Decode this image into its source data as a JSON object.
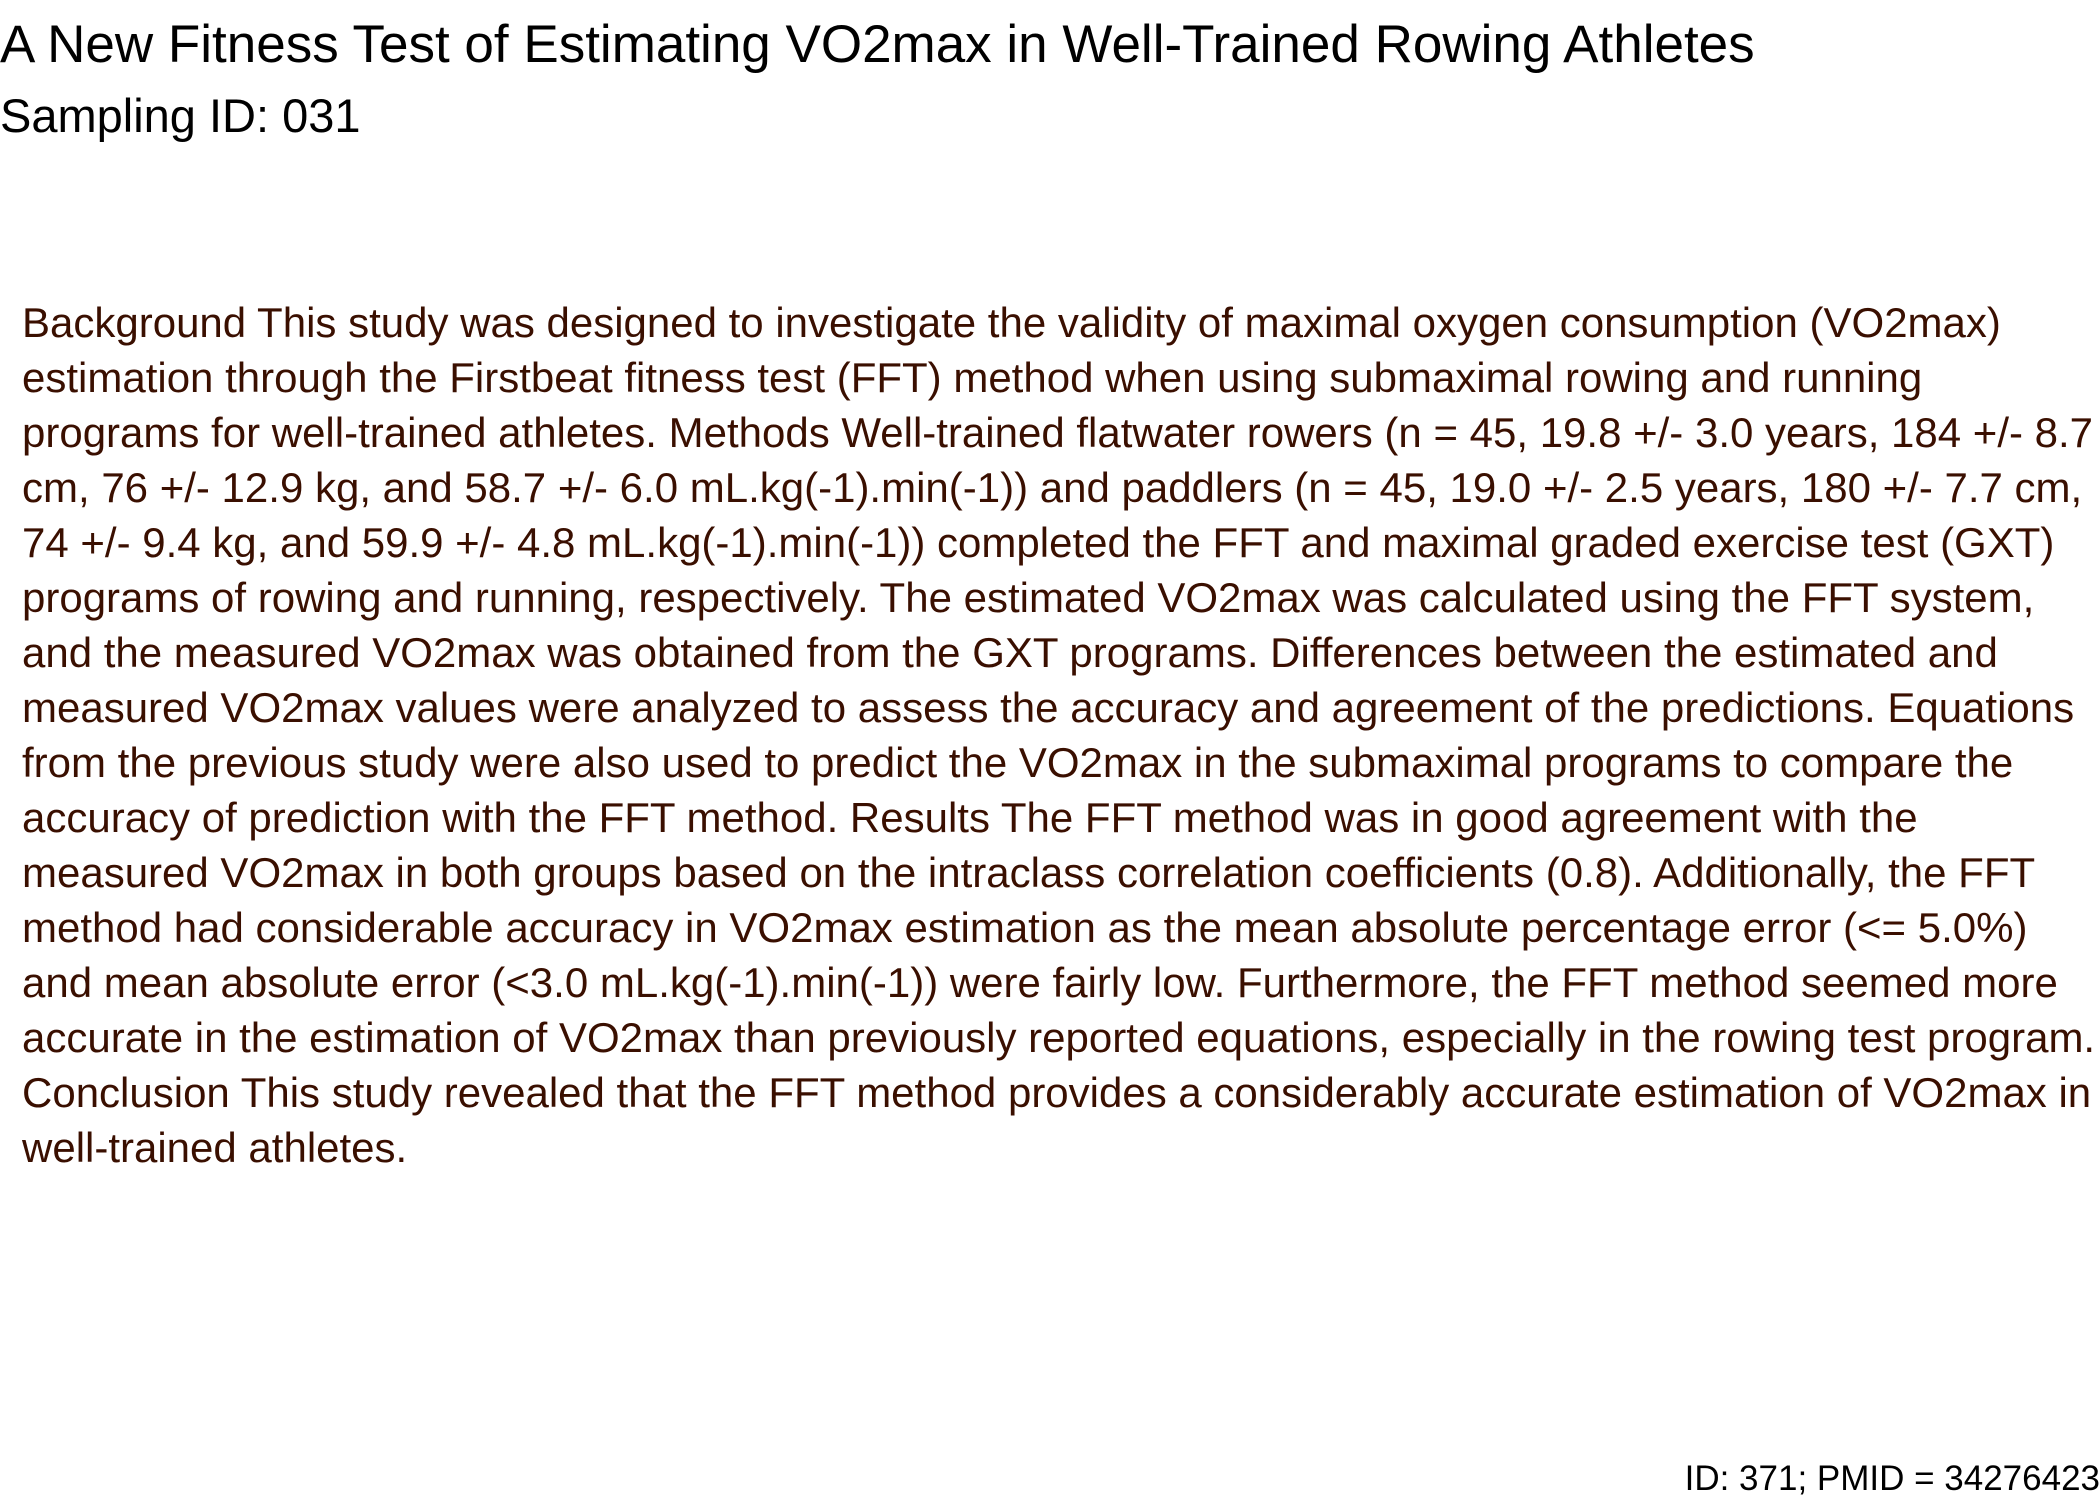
{
  "document": {
    "title": "A New Fitness Test of Estimating VO2max in Well-Trained Rowing Athletes",
    "sampling_id": "Sampling ID: 031",
    "abstract": "Background This study was designed to investigate the validity of maximal oxygen consumption (VO2max) estimation through the Firstbeat fitness test (FFT) method when using submaximal rowing and running programs for well-trained athletes. Methods Well-trained flatwater rowers (n = 45, 19.8 +/- 3.0 years, 184 +/- 8.7 cm, 76 +/- 12.9 kg, and 58.7 +/- 6.0 mL.kg(-1).min(-1)) and paddlers (n = 45, 19.0 +/- 2.5 years, 180 +/- 7.7 cm, 74 +/- 9.4 kg, and 59.9 +/- 4.8 mL.kg(-1).min(-1)) completed the FFT and maximal graded exercise test (GXT) programs of rowing and running, respectively. The estimated VO2max was calculated using the FFT system, and the measured VO2max was obtained from the GXT programs. Differences between the estimated and measured VO2max values were analyzed to assess the accuracy and agreement of the predictions. Equations from the previous study were also used to predict the VO2max in the submaximal programs to compare the accuracy of prediction with the FFT method. Results The FFT method was in good agreement with the measured VO2max in both groups based on the intraclass correlation coefficients (0.8). Additionally, the FFT method had considerable accuracy in VO2max estimation as the mean absolute percentage error (<= 5.0%) and mean absolute error (<3.0 mL.kg(-1).min(-1)) were fairly low. Furthermore, the FFT method seemed more accurate in the estimation of VO2max than previously reported equations, especially in the rowing test program. Conclusion This study revealed that the FFT method provides a considerably accurate estimation of VO2max in well-trained athletes.",
    "footer_id": "ID: 371; PMID = 34276423"
  },
  "colors": {
    "title_text": "#000000",
    "abstract_text": "#3a0f00",
    "background": "#ffffff"
  }
}
